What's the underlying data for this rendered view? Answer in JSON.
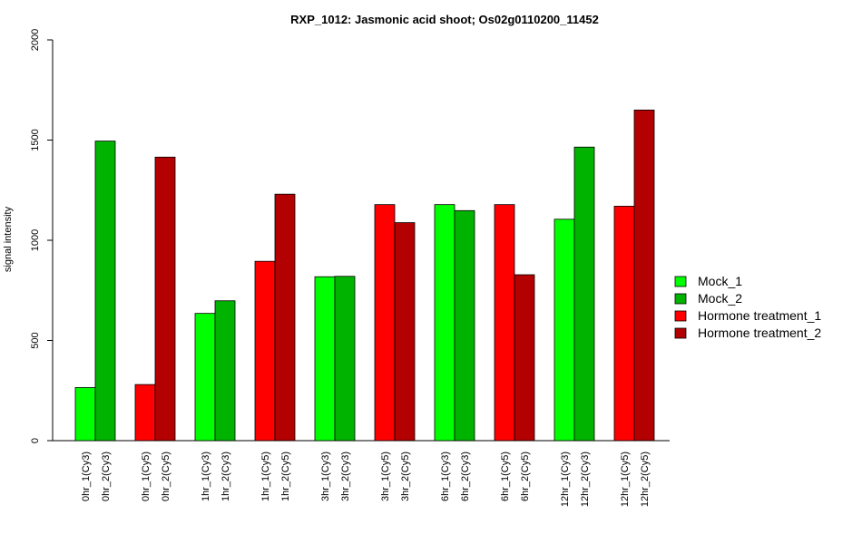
{
  "chart_data": {
    "type": "bar",
    "title": "RXP_1012: Jasmonic acid shoot; Os02g0110200_11452",
    "xlabel": "",
    "ylabel": "signal intensity",
    "ylim": [
      0,
      2000
    ],
    "yticks": [
      0,
      500,
      1000,
      1500,
      2000
    ],
    "legend_position": "right",
    "categories": [
      "0hr_1(Cy3)",
      "0hr_2(Cy3)",
      "0hr_1(Cy5)",
      "0hr_2(Cy5)",
      "1hr_1(Cy3)",
      "1hr_2(Cy3)",
      "1hr_1(Cy5)",
      "1hr_2(Cy5)",
      "3hr_1(Cy3)",
      "3hr_2(Cy3)",
      "3hr_1(Cy5)",
      "3hr_2(Cy5)",
      "6hr_1(Cy3)",
      "6hr_2(Cy3)",
      "6hr_1(Cy5)",
      "6hr_2(Cy5)",
      "12hr_1(Cy3)",
      "12hr_2(Cy3)",
      "12hr_1(Cy5)",
      "12hr_2(Cy5)"
    ],
    "values": [
      265,
      1495,
      280,
      1415,
      635,
      698,
      895,
      1230,
      818,
      820,
      1178,
      1088,
      1178,
      1148,
      1178,
      828,
      1105,
      1465,
      1170,
      1650
    ],
    "bar_series": [
      "Mock_1",
      "Mock_2",
      "Hormone treatment_1",
      "Hormone treatment_2",
      "Mock_1",
      "Mock_2",
      "Hormone treatment_1",
      "Hormone treatment_2",
      "Mock_1",
      "Mock_2",
      "Hormone treatment_1",
      "Hormone treatment_2",
      "Mock_1",
      "Mock_2",
      "Hormone treatment_1",
      "Hormone treatment_2",
      "Mock_1",
      "Mock_2",
      "Hormone treatment_1",
      "Hormone treatment_2"
    ],
    "series": [
      {
        "name": "Mock_1",
        "color": "#00ff00"
      },
      {
        "name": "Mock_2",
        "color": "#00b300"
      },
      {
        "name": "Hormone treatment_1",
        "color": "#ff0000"
      },
      {
        "name": "Hormone treatment_2",
        "color": "#b30000"
      }
    ]
  }
}
